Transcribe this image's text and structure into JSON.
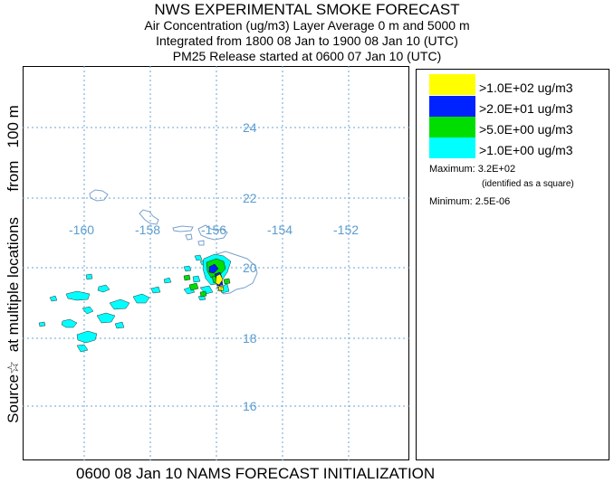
{
  "titles": {
    "main": "NWS EXPERIMENTAL SMOKE FORECAST",
    "line2": "Air Concentration (ug/m3) Layer Average    0 m and  5000 m",
    "line3": "Integrated from 1800 08 Jan to 1900 08 Jan 10 (UTC)",
    "line4": "PM25 Release started at 0600 07 Jan 10 (UTC)"
  },
  "side_label": "Source☆  at multiple locations      from   100 m",
  "axes": {
    "lon_labels": [
      "-160",
      "-158",
      "-156",
      "-154",
      "-152"
    ],
    "lat_labels": [
      "24",
      "22",
      "20",
      "18",
      "16"
    ]
  },
  "legend": [
    {
      "label": ">1.0E+02 ug/m3",
      "color": "#ffff00"
    },
    {
      "label": ">2.0E+01 ug/m3",
      "color": "#0022ff"
    },
    {
      "label": ">5.0E+00 ug/m3",
      "color": "#00dd00"
    },
    {
      "label": ">1.0E+00 ug/m3",
      "color": "#00ffff"
    }
  ],
  "stats": {
    "maximum_label": "Maximum:",
    "maximum_value": "3.2E+02",
    "maximum_note": "(identified as a square)",
    "minimum_label": "Minimum:",
    "minimum_value": "2.5E-06"
  },
  "footer": "0600 08 Jan 10 NAMS FORECAST INITIALIZATION",
  "colors": {
    "grid": "#6aa6d6",
    "coast": "#7aa0cc",
    "cyan": "#00ffff",
    "green": "#00dd00",
    "blue": "#0022ff",
    "yellow": "#ffff00"
  }
}
